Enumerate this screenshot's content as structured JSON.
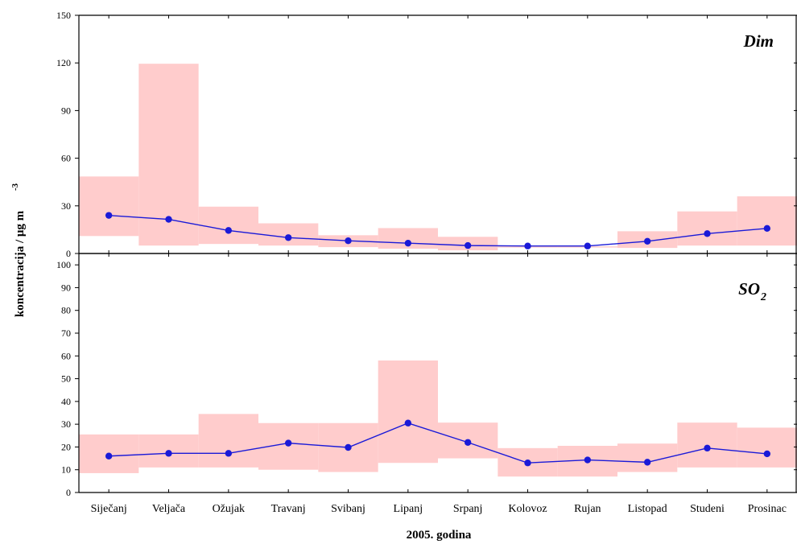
{
  "chart_data": [
    {
      "type": "line",
      "panel_label": "Dim",
      "categories": [
        "Siječanj",
        "Veljača",
        "Ožujak",
        "Travanj",
        "Svibanj",
        "Lipanj",
        "Srpanj",
        "Kolovoz",
        "Rujan",
        "Listopad",
        "Studeni",
        "Prosinac"
      ],
      "ylim": [
        0,
        150
      ],
      "yticks": [
        0,
        30,
        60,
        90,
        120,
        150
      ],
      "series": [
        {
          "values": [
            24,
            21.5,
            14.5,
            10,
            8,
            6.5,
            5,
            4.7,
            4.7,
            7.7,
            12.5,
            15.8
          ]
        }
      ],
      "ranges": [
        {
          "values": [
            [
              11,
              48.5
            ],
            [
              5,
              119.5
            ],
            [
              6,
              29.5
            ],
            [
              5,
              19
            ],
            [
              4,
              11.5
            ],
            [
              3,
              16
            ],
            [
              2,
              10.5
            ],
            [
              4,
              4.5
            ],
            [
              4,
              4.5
            ],
            [
              3.5,
              14
            ],
            [
              5,
              26.5
            ],
            [
              5,
              36
            ]
          ]
        }
      ],
      "colors": {
        "line": "#1a1ad8",
        "band": "#ffcccc"
      }
    },
    {
      "type": "line",
      "panel_label": "SO",
      "panel_label_sub": "2",
      "categories": [
        "Siječanj",
        "Veljača",
        "Ožujak",
        "Travanj",
        "Svibanj",
        "Lipanj",
        "Srpanj",
        "Kolovoz",
        "Rujan",
        "Listopad",
        "Studeni",
        "Prosinac"
      ],
      "ylim": [
        0,
        105
      ],
      "yticks": [
        0,
        10,
        20,
        30,
        40,
        50,
        60,
        70,
        80,
        90,
        100
      ],
      "series": [
        {
          "values": [
            16,
            17.2,
            17.2,
            21.7,
            19.8,
            30.5,
            22,
            13,
            14.3,
            13.3,
            19.5,
            17
          ]
        }
      ],
      "ranges": [
        {
          "values": [
            [
              8.5,
              25.5
            ],
            [
              11,
              25.5
            ],
            [
              11,
              34.5
            ],
            [
              10,
              30.5
            ],
            [
              9,
              30.5
            ],
            [
              13,
              58
            ],
            [
              15,
              30.7
            ],
            [
              7,
              19.5
            ],
            [
              7,
              20.5
            ],
            [
              9,
              21.5
            ],
            [
              11,
              30.7
            ],
            [
              11,
              28.5
            ]
          ]
        }
      ],
      "colors": {
        "line": "#1a1ad8",
        "band": "#ffcccc"
      }
    }
  ],
  "axes": {
    "ylabel": "koncentracija / μg m",
    "ylabel_sup": "-3",
    "xlabel": "2005. godina"
  }
}
